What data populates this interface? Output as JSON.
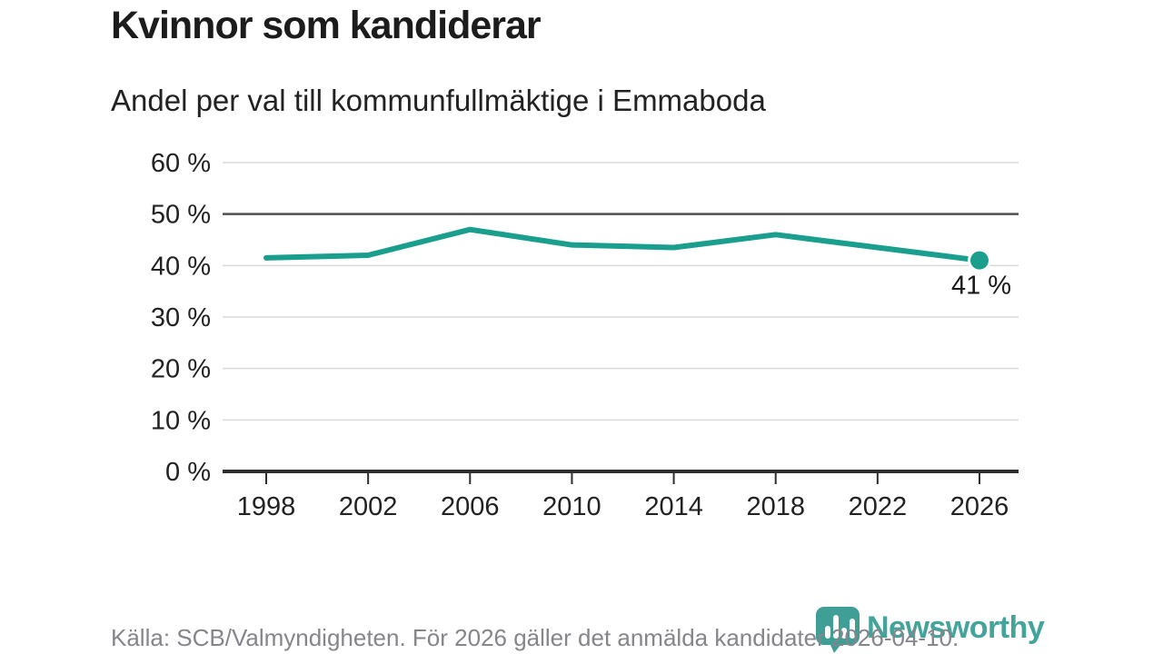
{
  "chart_data": {
    "type": "line",
    "title": "Kvinnor som kandiderar",
    "subtitle": "Andel per val till kommunfullmäktige i Emmaboda",
    "categories": [
      "1998",
      "2002",
      "2006",
      "2010",
      "2014",
      "2018",
      "2022",
      "2026"
    ],
    "values": [
      41.5,
      42,
      47,
      44,
      43.5,
      46,
      43.5,
      41
    ],
    "unit": "%",
    "xlabel": "",
    "ylabel": "",
    "ylim": [
      0,
      60
    ],
    "ytick_step": 10,
    "ytick_labels": [
      "0 %",
      "10 %",
      "20 %",
      "30 %",
      "40 %",
      "50 %",
      "60 %"
    ],
    "emphasized_gridline_value": 50,
    "grid_on": true,
    "legend_position": "none",
    "end_label": "41 %",
    "line_color": "#1a9e8e"
  },
  "footer": {
    "source": "Källa: SCB/Valmyndigheten. För 2026 gäller det anmälda kandidater 2026-04-10.",
    "brand_name": "Newsworthy"
  },
  "colors": {
    "accent_teal": "#1a9e8e",
    "brand_teal": "#42a49b",
    "logo_icon_teal": "#3f9e96",
    "gridline": "#dadada",
    "gridline_emphasis": "#4d4d4d",
    "axis": "#2e2e2e",
    "title_text": "#1c1c1c",
    "footer_text": "#85858c"
  }
}
